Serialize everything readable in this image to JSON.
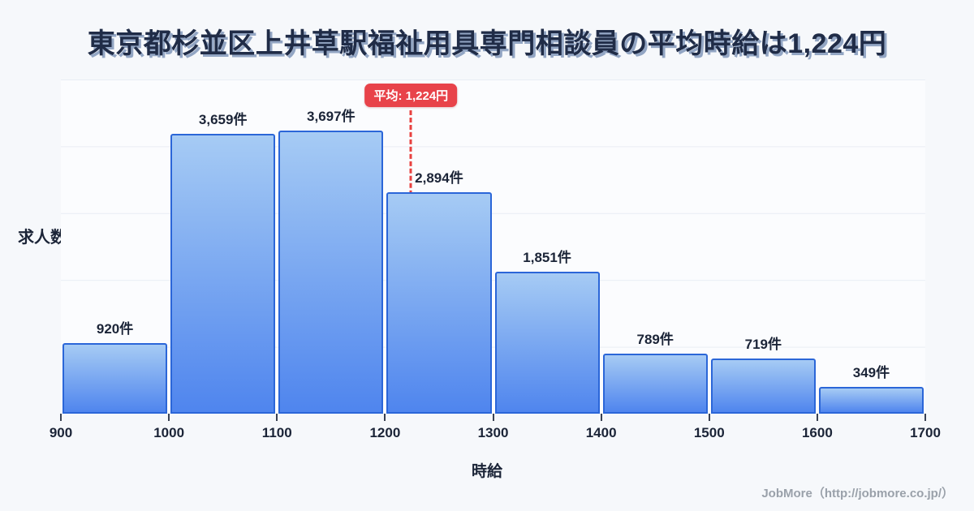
{
  "header": {
    "title": "東京都杉並区上井草駅福祉用具専門相談員の平均時給は1,224円"
  },
  "chart_data": {
    "type": "bar",
    "title": "東京都杉並区上井草駅福祉用具専門相談員の平均時給は1,224円",
    "xlabel": "時給",
    "ylabel": "求人数",
    "xlim": [
      900,
      1700
    ],
    "ylim": [
      0,
      4365
    ],
    "grid": true,
    "legend": false,
    "bin_width": 100,
    "categories": [
      "900-1000",
      "1000-1100",
      "1100-1200",
      "1200-1300",
      "1300-1400",
      "1400-1500",
      "1500-1600",
      "1600-1700"
    ],
    "values": [
      920,
      3659,
      3697,
      2894,
      1851,
      789,
      719,
      349
    ],
    "bar_labels": [
      "920件",
      "3,659件",
      "3,697件",
      "2,894件",
      "1,851件",
      "789件",
      "719件",
      "349件"
    ],
    "x_ticks": [
      "900",
      "1000",
      "1100",
      "1200",
      "1300",
      "1400",
      "1500",
      "1600",
      "1700"
    ],
    "average": {
      "value": 1224,
      "label": "平均: 1,224円"
    },
    "colors": {
      "bar_top": "#a6cbf4",
      "bar_bottom": "#4f85ee",
      "bar_border": "#2b66d8",
      "average_red": "#e8413f",
      "badge_red": "#e8434a",
      "title_text": "#202c47",
      "label_text": "#1b2437",
      "grid_line": "#e9edf4",
      "background": "#f6f8fb",
      "footer_text": "#9aa1aa"
    }
  },
  "footer": {
    "credit": "JobMore（http://jobmore.co.jp/）"
  }
}
